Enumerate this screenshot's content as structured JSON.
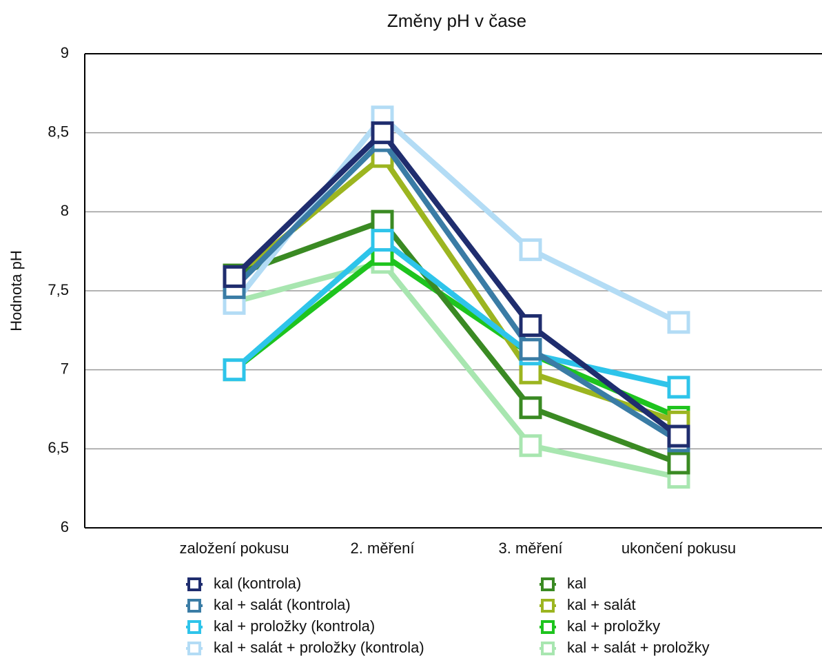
{
  "chart_data": {
    "type": "line",
    "title": "Změny pH v čase",
    "y_label": "Hodnota pH",
    "categories": [
      "založení pokusu",
      "2. měření",
      "3. měření",
      "ukončení pokusu"
    ],
    "ylim": [
      6,
      9
    ],
    "yticks": [
      6,
      {
        "value": 6.5,
        "label": "6,5"
      },
      7,
      {
        "value": 7.5,
        "label": "7,5"
      },
      8,
      {
        "value": 8.5,
        "label": "8,5"
      },
      9
    ],
    "grid": true,
    "series": [
      {
        "name": "kal (kontrola)",
        "color": "#1f2d6e",
        "values": [
          7.59,
          8.5,
          7.28,
          6.58
        ]
      },
      {
        "name": "kal + salát (kontrola)",
        "color": "#3a7ca5",
        "values": [
          7.52,
          8.45,
          7.13,
          6.55
        ]
      },
      {
        "name": "kal + proložky (kontrola)",
        "color": "#2ec4ea",
        "values": [
          7.0,
          7.82,
          7.1,
          6.89
        ]
      },
      {
        "name": "kal + salát + proložky (kontrola)",
        "color": "#b3dcf5",
        "values": [
          7.42,
          8.6,
          7.76,
          7.3
        ]
      },
      {
        "name": "kal",
        "color": "#3a8a23",
        "values": [
          7.6,
          7.94,
          6.76,
          6.41
        ]
      },
      {
        "name": "kal + salát",
        "color": "#9cb520",
        "values": [
          7.58,
          8.35,
          6.98,
          6.67
        ]
      },
      {
        "name": "kal + proložky",
        "color": "#1ec41e",
        "values": [
          7.0,
          7.73,
          7.1,
          6.7
        ]
      },
      {
        "name": "kal + salát + proložky",
        "color": "#a8e6b0",
        "values": [
          7.43,
          7.68,
          6.52,
          6.32
        ]
      }
    ]
  }
}
